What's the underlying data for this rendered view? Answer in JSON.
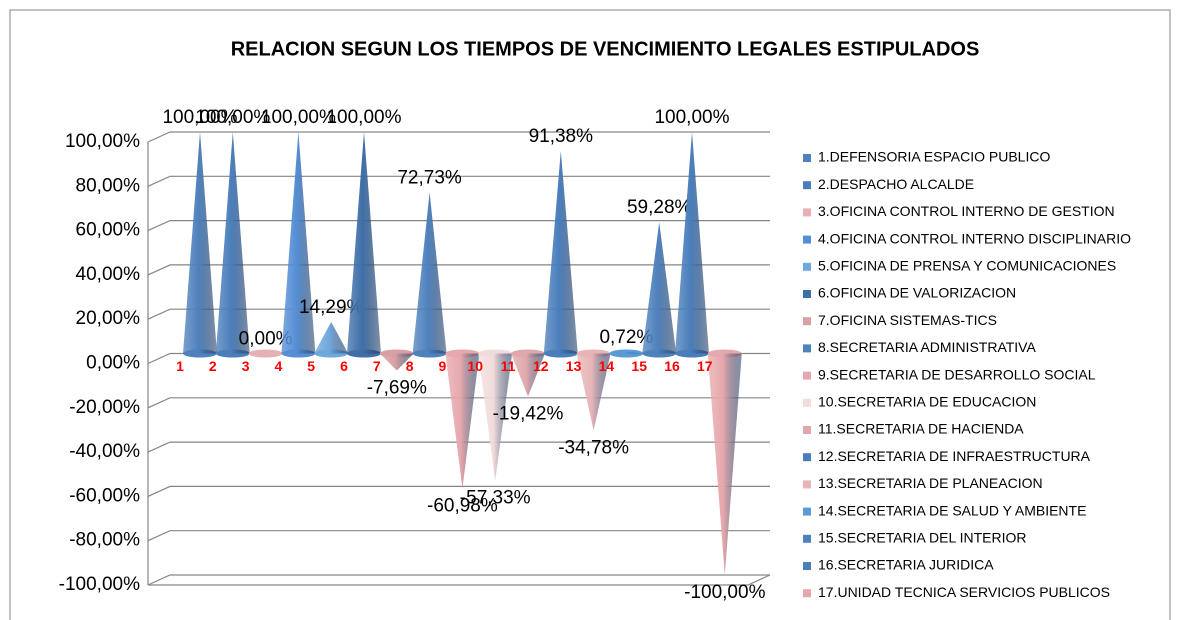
{
  "chart_data": {
    "type": "cone",
    "title": "RELACION SEGUN LOS TIEMPOS DE VENCIMIENTO LEGALES ESTIPULADOS",
    "categories": [
      "1",
      "2",
      "3",
      "4",
      "5",
      "6",
      "7",
      "8",
      "9",
      "10",
      "11",
      "12",
      "13",
      "14",
      "15",
      "16",
      "17"
    ],
    "values": [
      100,
      100,
      0,
      100,
      14.29,
      100,
      -7.69,
      72.73,
      -60.98,
      -57.33,
      -19.42,
      91.38,
      -34.78,
      0.72,
      59.28,
      100,
      -100
    ],
    "value_labels": [
      "100,00%",
      "100,00%",
      "0,00%",
      "100,00%",
      "14,29%",
      "100,00%",
      "-7,69%",
      "72,73%",
      "-60,98%",
      "-57,33%",
      "-19,42%",
      "91,38%",
      "-34,78%",
      "0,72%",
      "59,28%",
      "100,00%",
      "-100,00%"
    ],
    "colors": [
      "#4f81bd",
      "#4a7ebb",
      "#e6b0b4",
      "#558ed5",
      "#6fa8dc",
      "#3f6fa8",
      "#d9a0a4",
      "#4f81bd",
      "#e6a8ac",
      "#f2dcdb",
      "#e0a8ac",
      "#4a7ebb",
      "#e8b4b8",
      "#5b9bd5",
      "#4f81bd",
      "#4a7ebb",
      "#e6a8ac"
    ],
    "legend": [
      "1.DEFENSORIA ESPACIO PUBLICO",
      "2.DESPACHO ALCALDE",
      "3.OFICINA CONTROL INTERNO DE GESTION",
      "4.OFICINA CONTROL INTERNO DISCIPLINARIO",
      "5.OFICINA DE PRENSA Y COMUNICACIONES",
      "6.OFICINA DE VALORIZACION",
      "7.OFICINA SISTEMAS-TICS",
      "8.SECRETARIA ADMINISTRATIVA",
      "9.SECRETARIA DE DESARROLLO SOCIAL",
      "10.SECRETARIA DE EDUCACION",
      "11.SECRETARIA DE HACIENDA",
      "12.SECRETARIA DE INFRAESTRUCTURA",
      "13.SECRETARIA DE PLANEACION",
      "14.SECRETARIA DE SALUD Y AMBIENTE",
      "15.SECRETARIA DEL INTERIOR",
      "16.SECRETARIA JURIDICA",
      "17.UNIDAD TECNICA SERVICIOS PUBLICOS"
    ],
    "ylim": [
      -100,
      100
    ],
    "yticks": [
      {
        "value": -100,
        "label": "-100,00%"
      },
      {
        "value": -80,
        "label": "-80,00%"
      },
      {
        "value": -60,
        "label": "-60,00%"
      },
      {
        "value": -40,
        "label": "-40,00%"
      },
      {
        "value": -20,
        "label": "-20,00%"
      },
      {
        "value": 0,
        "label": "0,00%"
      },
      {
        "value": 20,
        "label": "20,00%"
      },
      {
        "value": 40,
        "label": "40,00%"
      },
      {
        "value": 60,
        "label": "60,00%"
      },
      {
        "value": 80,
        "label": "80,00%"
      },
      {
        "value": 100,
        "label": "100,00%"
      }
    ],
    "category_label_color": "#ff0000",
    "grid": true
  }
}
